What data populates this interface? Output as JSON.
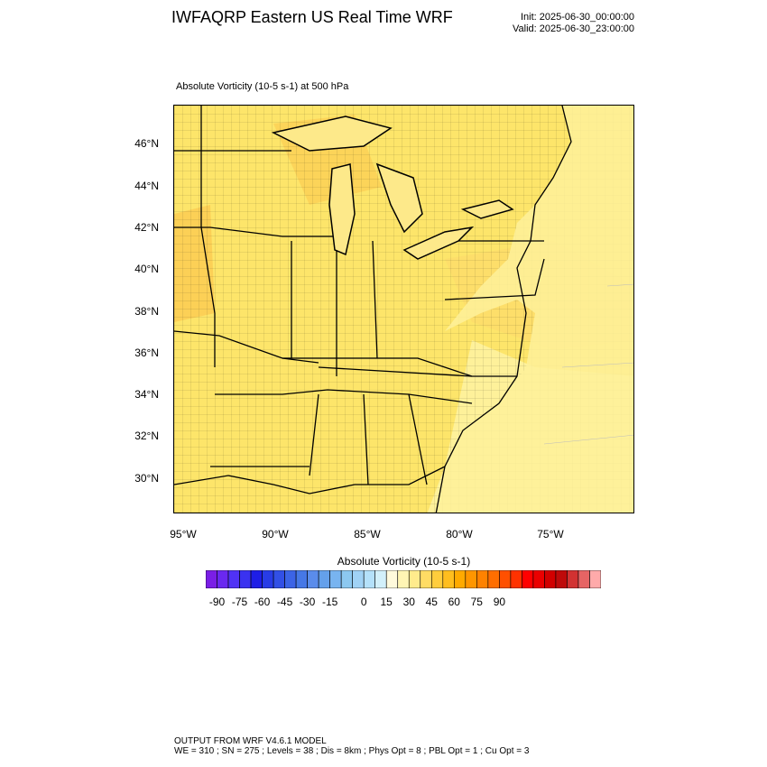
{
  "header": {
    "title": "IWFAQRP Eastern US Real Time WRF",
    "init": "Init: 2025-06-30_00:00:00",
    "valid": "Valid: 2025-06-30_23:00:00"
  },
  "plot": {
    "field_label": "Absolute Vorticity   (10-5 s-1)     at   500 hPa",
    "lat_ticks": [
      "46°N",
      "44°N",
      "42°N",
      "40°N",
      "38°N",
      "36°N",
      "34°N",
      "32°N",
      "30°N"
    ],
    "lon_ticks": [
      "95°W",
      "90°W",
      "85°W",
      "80°W",
      "75°W"
    ]
  },
  "colorbar": {
    "title": "Absolute Vorticity  (10-5 s-1)",
    "labels": [
      "-90",
      "-75",
      "-60",
      "-45",
      "-30",
      "-15",
      "0",
      "15",
      "30",
      "45",
      "60",
      "75",
      "90"
    ],
    "colors": [
      "#7a1ee6",
      "#6a28f0",
      "#5032f5",
      "#3a32f0",
      "#1e1ee6",
      "#283ce6",
      "#3250e6",
      "#3c64e6",
      "#4678e6",
      "#5a8ceb",
      "#64a0eb",
      "#78b4f0",
      "#8cc8f0",
      "#a0d2f5",
      "#b4e1fa",
      "#d2f0fa",
      "#fffadc",
      "#fff5b4",
      "#ffeb8c",
      "#ffdc64",
      "#ffcd3c",
      "#ffbe1e",
      "#ffaa00",
      "#ff9600",
      "#ff8200",
      "#ff6e00",
      "#ff5000",
      "#ff3200",
      "#ff0000",
      "#eb0000",
      "#d20000",
      "#be0a0a",
      "#d23232",
      "#e66464",
      "#ffaaaa"
    ]
  },
  "footer": {
    "line1": "OUTPUT FROM WRF V4.6.1 MODEL",
    "line2": "WE = 310 ; SN = 275 ; Levels = 38 ; Dis = 8km ; Phys Opt = 8 ; PBL Opt = 1 ; Cu Opt = 3"
  }
}
